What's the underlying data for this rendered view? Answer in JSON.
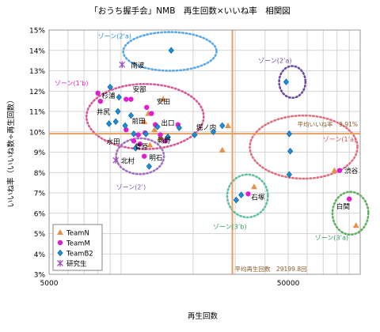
{
  "chart_data": {
    "type": "scatter",
    "title": "「おうち握手会」NMB　再生回数×いいね率　相関図",
    "xlabel": "再生回数",
    "ylabel": "いいね率（いいね数÷再生回数）",
    "x_scale": "log",
    "xlim": [
      5000,
      100000
    ],
    "ylim": [
      3,
      15
    ],
    "x_ticks": [
      {
        "value": 5000,
        "label": "5000"
      },
      {
        "value": 50000,
        "label": "50000"
      }
    ],
    "y_ticks": [
      {
        "value": 3,
        "label": "3%"
      },
      {
        "value": 4,
        "label": "4%"
      },
      {
        "value": 5,
        "label": "5%"
      },
      {
        "value": 6,
        "label": "6%"
      },
      {
        "value": 7,
        "label": "7%"
      },
      {
        "value": 8,
        "label": "8%"
      },
      {
        "value": 9,
        "label": "9%"
      },
      {
        "value": 10,
        "label": "10%"
      },
      {
        "value": 11,
        "label": "11%"
      },
      {
        "value": 12,
        "label": "12%"
      },
      {
        "value": 13,
        "label": "13%"
      },
      {
        "value": 14,
        "label": "14%"
      },
      {
        "value": 15,
        "label": "15%"
      }
    ],
    "grid": true,
    "legend_position": "bottom-left",
    "averages": {
      "x": 29199.8,
      "x_label": "平均再生回数　29199.8回",
      "y": 9.91,
      "y_label": "平均いいね率　9.91%",
      "color": "#e8a060"
    },
    "series": [
      {
        "name": "TeamN",
        "marker": "triangle",
        "color": "#e8904a",
        "points": [
          [
            15000,
            11.6
          ],
          [
            13000,
            10.9
          ],
          [
            12500,
            10.5
          ],
          [
            13800,
            10.1
          ],
          [
            14600,
            9.7
          ],
          [
            13200,
            9.35
          ],
          [
            28000,
            10.3
          ],
          [
            26500,
            9.1
          ],
          [
            36000,
            7.3
          ],
          [
            78000,
            8.1
          ],
          [
            96000,
            5.4
          ]
        ]
      },
      {
        "name": "TeamM",
        "marker": "circle",
        "color": "#e01ed0",
        "points": [
          [
            8000,
            11.9
          ],
          [
            8200,
            11.5
          ],
          [
            10500,
            11.6
          ],
          [
            12800,
            11.2
          ],
          [
            11000,
            11.6
          ],
          [
            13400,
            10.9
          ],
          [
            13900,
            10.35
          ],
          [
            10500,
            10.1
          ],
          [
            12600,
            9.95
          ],
          [
            11800,
            9.85
          ],
          [
            11300,
            9.55
          ],
          [
            12000,
            9.4
          ],
          [
            14600,
            9.85
          ],
          [
            17300,
            10.35
          ],
          [
            15300,
            9.55
          ],
          [
            12500,
            8.8
          ],
          [
            34000,
            6.95
          ],
          [
            82000,
            8.1
          ],
          [
            90000,
            6.7
          ]
        ]
      },
      {
        "name": "TeamB2",
        "marker": "diamond",
        "color": "#1a8fd8",
        "points": [
          [
            16200,
            14.0
          ],
          [
            9000,
            12.2
          ],
          [
            9800,
            11.7
          ],
          [
            9700,
            11.0
          ],
          [
            9500,
            10.5
          ],
          [
            11000,
            10.8
          ],
          [
            8900,
            10.4
          ],
          [
            10400,
            10.3
          ],
          [
            14200,
            10.25
          ],
          [
            17500,
            10.2
          ],
          [
            11300,
            9.9
          ],
          [
            12700,
            9.9
          ],
          [
            15700,
            9.75
          ],
          [
            20300,
            9.85
          ],
          [
            24300,
            10.0
          ],
          [
            26500,
            10.3
          ],
          [
            11500,
            9.2
          ],
          [
            13100,
            8.3
          ],
          [
            49000,
            12.45
          ],
          [
            50500,
            9.9
          ],
          [
            51000,
            9.05
          ],
          [
            50500,
            7.9
          ],
          [
            31800,
            6.9
          ],
          [
            30300,
            6.65
          ]
        ]
      },
      {
        "name": "研究生",
        "marker": "asterisk",
        "color": "#a050c0",
        "points": [
          [
            10100,
            13.3
          ],
          [
            9500,
            8.6
          ]
        ]
      }
    ],
    "point_labels": [
      {
        "text": "南波",
        "x": 11000,
        "y": 13.3
      },
      {
        "text": "杉浦",
        "x": 8300,
        "y": 11.8
      },
      {
        "text": "安部",
        "x": 11200,
        "y": 12.1
      },
      {
        "text": "安田",
        "x": 14100,
        "y": 11.5
      },
      {
        "text": "井尻",
        "x": 7900,
        "y": 11.0
      },
      {
        "text": "前田",
        "x": 11100,
        "y": 10.55
      },
      {
        "text": "出口",
        "x": 14700,
        "y": 10.45
      },
      {
        "text": "堀ノ内",
        "x": 20600,
        "y": 10.25
      },
      {
        "text": "水田",
        "x": 8700,
        "y": 9.55
      },
      {
        "text": "鵜野",
        "x": 14200,
        "y": 9.6
      },
      {
        "text": "菅原",
        "x": 11400,
        "y": 9.3
      },
      {
        "text": "明石",
        "x": 13100,
        "y": 8.75
      },
      {
        "text": "北村",
        "x": 10000,
        "y": 8.6
      },
      {
        "text": "石塚",
        "x": 35000,
        "y": 6.8
      },
      {
        "text": "渋谷",
        "x": 86000,
        "y": 8.1
      },
      {
        "text": "白間",
        "x": 79500,
        "y": 6.35
      }
    ],
    "annotations": [
      {
        "text": "ゾーン(2’a)",
        "x": 9400,
        "y": 14.7,
        "color": "#1a8fd8"
      },
      {
        "text": "ゾーン(1’b)",
        "x": 6200,
        "y": 12.4,
        "color": "#e01ed0"
      },
      {
        "text": "ゾーン(1’a)",
        "x": 82000,
        "y": 9.65,
        "color": "#d05050"
      },
      {
        "text": "ゾーン(2’a)",
        "x": 44000,
        "y": 13.5,
        "color": "#6a4aa0"
      },
      {
        "text": "ゾーン(3’b)",
        "x": 28500,
        "y": 5.35,
        "color": "#2a9a5a"
      },
      {
        "text": "ゾーン(3’a)",
        "x": 76000,
        "y": 4.8,
        "color": "#2a9a5a"
      },
      {
        "text": "ゾーン(2’)",
        "x": 11000,
        "y": 7.3,
        "color": "#8050a0"
      }
    ],
    "zones": [
      {
        "cx": 16000,
        "cy": 13.95,
        "rx_log": 0.195,
        "ry": 0.95,
        "color": "#5aa8e8"
      },
      {
        "cx": 12600,
        "cy": 10.75,
        "rx_log": 0.245,
        "ry": 1.6,
        "color": "#d85898"
      },
      {
        "cx": 12000,
        "cy": 8.8,
        "rx_log": 0.1,
        "ry": 0.88,
        "color": "#a070c0"
      },
      {
        "cx": 52000,
        "cy": 12.45,
        "rx_log": 0.055,
        "ry": 0.78,
        "color": "#6a4aa0"
      },
      {
        "cx": 58000,
        "cy": 9.25,
        "rx_log": 0.225,
        "ry": 1.55,
        "color": "#e07080"
      },
      {
        "cx": 33800,
        "cy": 6.85,
        "rx_log": 0.085,
        "ry": 1.05,
        "color": "#60c0a0"
      },
      {
        "cx": 91000,
        "cy": 6.0,
        "rx_log": 0.075,
        "ry": 1.05,
        "color": "#60b060"
      }
    ]
  }
}
